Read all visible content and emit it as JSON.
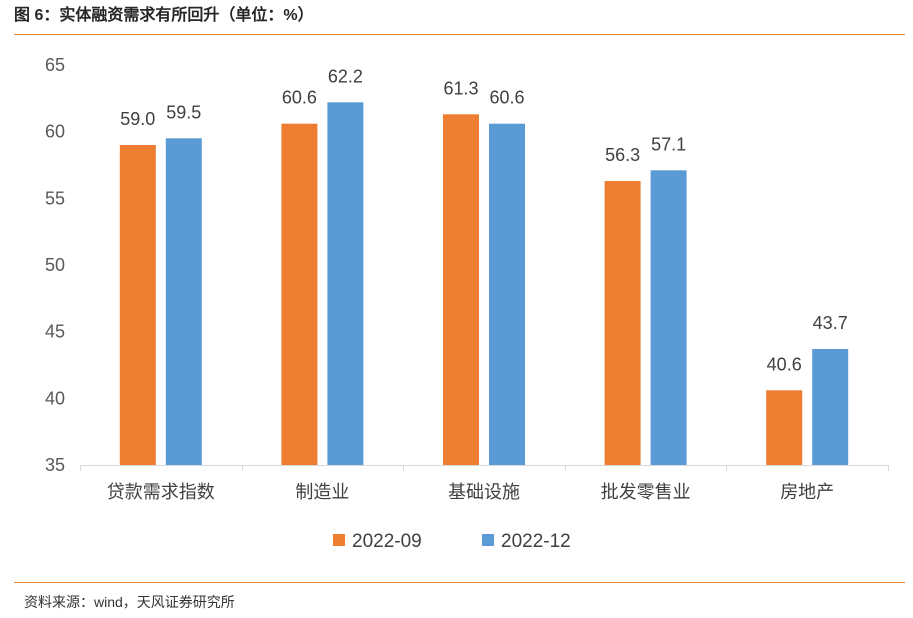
{
  "colors": {
    "accent_line": "#E8893A",
    "axis_line": "#D9D9D9"
  },
  "chart_data": {
    "type": "bar",
    "title": "图 6：实体融资需求有所回升（单位：%）",
    "categories": [
      "贷款需求指数",
      "制造业",
      "基础设施",
      "批发零售业",
      "房地产"
    ],
    "series": [
      {
        "name": "2022-09",
        "color": "#ED7D31",
        "values": [
          59.0,
          60.6,
          61.3,
          56.3,
          40.6
        ],
        "labels": [
          "59.0",
          "60.6",
          "61.3",
          "56.3",
          "40.6"
        ]
      },
      {
        "name": "2022-12",
        "color": "#5B9BD5",
        "values": [
          59.5,
          62.2,
          60.6,
          57.1,
          43.7
        ],
        "labels": [
          "59.5",
          "62.2",
          "60.6",
          "57.1",
          "43.7"
        ]
      }
    ],
    "ylim": [
      35,
      65
    ],
    "yticks": [
      35,
      40,
      45,
      50,
      55,
      60,
      65
    ],
    "grid": false,
    "legend": "bottom"
  },
  "footer": {
    "source": "资料来源：wind，天风证券研究所"
  }
}
